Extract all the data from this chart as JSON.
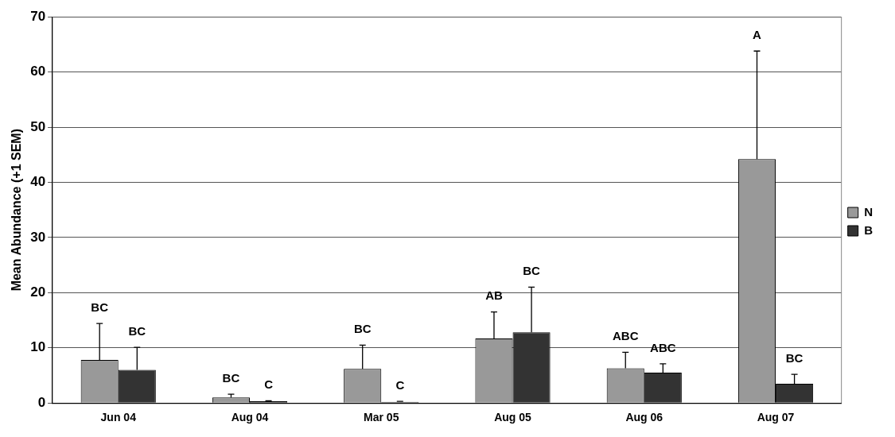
{
  "chart_data": {
    "type": "bar",
    "ylabel": "Mean Abundance (+1 SEM)",
    "categories": [
      "Jun 04",
      "Aug 04",
      "Mar 05",
      "Aug 05",
      "Aug 06",
      "Aug 07"
    ],
    "series": [
      {
        "name": "N",
        "color": "#999999",
        "values": [
          7.8,
          1.0,
          6.2,
          11.7,
          6.3,
          44.2
        ],
        "errors": [
          6.6,
          0.6,
          4.3,
          4.8,
          2.9,
          19.6
        ]
      },
      {
        "name": "B",
        "color": "#333333",
        "values": [
          6.0,
          0.3,
          0.2,
          12.8,
          5.5,
          3.5
        ],
        "errors": [
          4.1,
          0.1,
          0.1,
          8.2,
          1.6,
          1.7
        ]
      }
    ],
    "annotations": [
      "BC",
      "BC",
      "BC",
      "C",
      "BC",
      "C",
      "AB",
      "BC",
      "ABC",
      "ABC",
      "A",
      "BC"
    ],
    "ylim": [
      0,
      70
    ],
    "yticks": [
      0,
      10,
      20,
      30,
      40,
      50,
      60,
      70
    ],
    "grid": "y",
    "legend": "right"
  }
}
